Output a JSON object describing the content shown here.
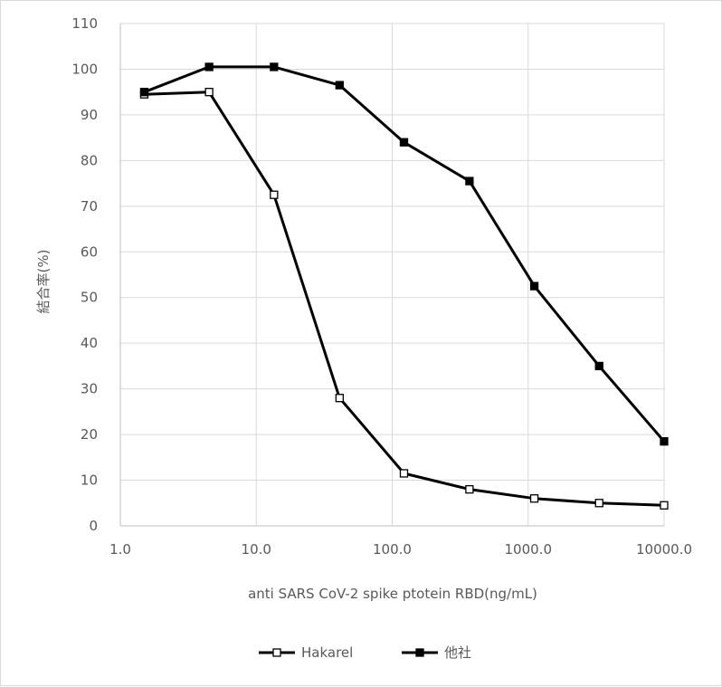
{
  "chart_data": {
    "type": "line",
    "xlabel": "anti SARS CoV-2 spike ptotein RBD(ng/mL)",
    "ylabel": "結合率(%)",
    "x_scale": "log",
    "xlim": [
      1.0,
      10000.0
    ],
    "ylim": [
      0,
      110
    ],
    "x_ticks": [
      "1.0",
      "10.0",
      "100.0",
      "1000.0",
      "10000.0"
    ],
    "y_ticks": [
      "0",
      "10",
      "20",
      "30",
      "40",
      "50",
      "60",
      "70",
      "80",
      "90",
      "100",
      "110"
    ],
    "grid": "vertical and horizontal",
    "legend_position": "bottom",
    "series": [
      {
        "name": "Hakarel",
        "marker": "hollow-square",
        "color": "#000000",
        "points": [
          {
            "x": 1.5,
            "y": 94.5
          },
          {
            "x": 4.5,
            "y": 95
          },
          {
            "x": 13.5,
            "y": 72.5
          },
          {
            "x": 41,
            "y": 28
          },
          {
            "x": 122,
            "y": 11.5
          },
          {
            "x": 370,
            "y": 8
          },
          {
            "x": 1110,
            "y": 6
          },
          {
            "x": 3330,
            "y": 5
          },
          {
            "x": 10000,
            "y": 4.5
          }
        ]
      },
      {
        "name": "他社",
        "marker": "filled-square",
        "color": "#000000",
        "points": [
          {
            "x": 1.5,
            "y": 95
          },
          {
            "x": 4.5,
            "y": 100.5
          },
          {
            "x": 13.5,
            "y": 100.5
          },
          {
            "x": 41,
            "y": 96.5
          },
          {
            "x": 122,
            "y": 84
          },
          {
            "x": 370,
            "y": 75.5
          },
          {
            "x": 1110,
            "y": 52.5
          },
          {
            "x": 3330,
            "y": 35
          },
          {
            "x": 10000,
            "y": 18.5
          }
        ]
      }
    ]
  }
}
